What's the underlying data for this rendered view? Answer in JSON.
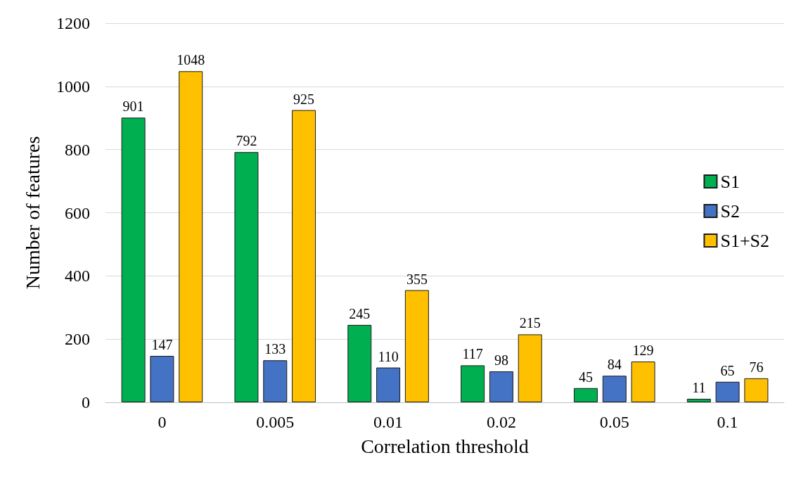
{
  "chart_data": {
    "type": "bar",
    "xlabel": "Correlation threshold",
    "ylabel": "Number of features",
    "categories": [
      "0",
      "0.005",
      "0.01",
      "0.02",
      "0.05",
      "0.1"
    ],
    "series": [
      {
        "name": "S1",
        "color": "#00b050",
        "values": [
          901,
          792,
          245,
          117,
          45,
          11
        ]
      },
      {
        "name": "S2",
        "color": "#4472c4",
        "values": [
          147,
          133,
          110,
          98,
          84,
          65
        ]
      },
      {
        "name": "S1+S2",
        "color": "#ffc000",
        "values": [
          1048,
          925,
          355,
          215,
          129,
          76
        ]
      }
    ],
    "ylim": [
      0,
      1200
    ],
    "yticks": [
      0,
      200,
      400,
      600,
      800,
      1000,
      1200
    ],
    "grid": "y",
    "legend": "right",
    "data_labels": true
  }
}
